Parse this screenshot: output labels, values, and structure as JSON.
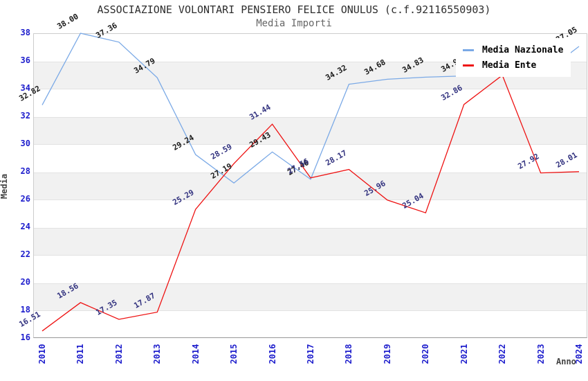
{
  "header": {
    "title": "ASSOCIAZIONE VOLONTARI PENSIERO FELICE ONULUS (c.f.92116550903)",
    "subtitle": "Media Importi"
  },
  "colors": {
    "national_line": "#7aa9e6",
    "ente_line": "#ee1111",
    "national_label": "#1a1a1a",
    "ente_label": "#32327f",
    "axis_tick_text": "#1d1dcc",
    "band_fill": "#f1f1f1",
    "band_edge": "#e2e2e2",
    "plot_border": "#cccccc",
    "legend_bg": "#ffffff"
  },
  "chart_data": {
    "type": "line",
    "x": [
      2010,
      2011,
      2012,
      2013,
      2014,
      2015,
      2016,
      2017,
      2018,
      2019,
      2020,
      2021,
      2022,
      2023,
      2024
    ],
    "xlabel": "Anno",
    "ylabel": "Media",
    "ylim": [
      16,
      38
    ],
    "yticks": [
      16,
      18,
      20,
      22,
      24,
      26,
      28,
      30,
      32,
      34,
      36,
      38
    ],
    "grid": "alternating horizontal gray bands every 2 units",
    "legend_position": "top-right inside plot, overlapping some point labels",
    "series": [
      {
        "name": "Media Nazionale",
        "color": "#7aa9e6",
        "label_color": "#1a1a1a",
        "values": [
          32.82,
          38.0,
          37.36,
          34.79,
          29.24,
          27.19,
          29.43,
          27.46,
          34.32,
          34.68,
          34.83,
          34.92,
          34.88,
          34.95,
          37.05
        ]
      },
      {
        "name": "Media Ente",
        "color": "#ee1111",
        "label_color": "#32327f",
        "values": [
          16.51,
          18.56,
          17.35,
          17.87,
          25.29,
          28.59,
          31.44,
          27.56,
          28.17,
          25.96,
          25.04,
          32.86,
          34.97,
          27.92,
          28.01
        ]
      }
    ]
  }
}
